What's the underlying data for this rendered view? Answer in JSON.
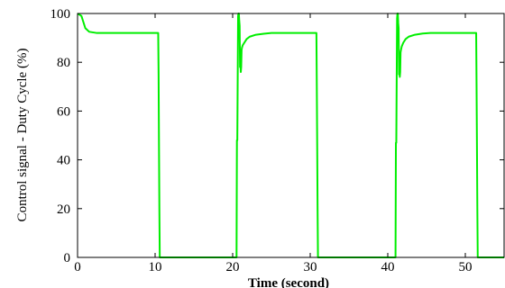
{
  "chart_data": {
    "type": "line",
    "title": "",
    "xlabel": "Time (second)",
    "ylabel": "Control signal - Duty Cycle (%)",
    "xlim": [
      0,
      55
    ],
    "ylim": [
      0,
      100
    ],
    "x_ticks": [
      0,
      10,
      20,
      30,
      40,
      50
    ],
    "y_ticks": [
      0,
      20,
      40,
      60,
      80,
      100
    ],
    "grid": false,
    "legend": "none",
    "series": [
      {
        "color": "#00ee00",
        "x": [
          0,
          0.5,
          1.0,
          1.5,
          2.5,
          4.0,
          10.4,
          10.45,
          10.5,
          10.55,
          10.6,
          10.8,
          20.5,
          20.55,
          20.6,
          20.7,
          20.75,
          20.8,
          20.85,
          20.9,
          20.95,
          21.0,
          21.05,
          21.1,
          21.15,
          21.2,
          21.3,
          21.5,
          21.8,
          22.2,
          23.0,
          24.0,
          25.0,
          30.8,
          30.85,
          30.9,
          30.95,
          31.0,
          31.2,
          41.0,
          41.05,
          41.1,
          41.2,
          41.25,
          41.3,
          41.35,
          41.4,
          41.45,
          41.5,
          41.55,
          41.6,
          41.65,
          41.7,
          41.8,
          42.0,
          42.3,
          42.7,
          43.5,
          44.5,
          45.5,
          51.4,
          51.45,
          51.5,
          51.55,
          51.6,
          51.8,
          55
        ],
        "y": [
          100,
          99,
          94,
          92.5,
          92,
          92,
          92,
          75,
          46,
          20,
          0,
          0,
          0,
          48,
          48,
          99,
          100,
          100,
          97,
          95,
          78,
          80,
          76,
          78,
          85,
          86,
          87,
          88,
          89.5,
          90.5,
          91.3,
          91.7,
          92,
          92,
          70,
          46,
          20,
          0,
          0,
          0,
          47,
          47,
          98,
          100,
          100,
          96,
          94,
          75,
          77,
          74,
          76,
          84,
          85,
          86.5,
          88,
          89.5,
          90.5,
          91.3,
          91.8,
          92,
          92,
          70,
          46,
          20,
          0,
          0,
          0
        ]
      }
    ]
  }
}
